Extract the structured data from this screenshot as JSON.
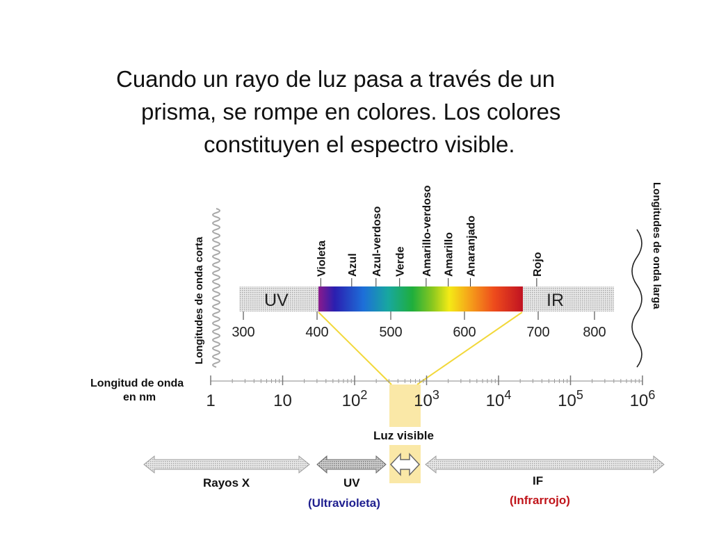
{
  "title_lines": [
    "Cuando un rayo de luz pasa a través de un",
    "prisma, se rompe en colores. Los colores",
    "constituyen el espectro visible."
  ],
  "side_labels": {
    "left": "Longitudes de onda corta",
    "right": "Longitudes de onda larga"
  },
  "spectrum": {
    "uv_label": "UV",
    "ir_label": "IR",
    "axis_ticks": [
      {
        "value": 300,
        "label": "300"
      },
      {
        "value": 400,
        "label": "400"
      },
      {
        "value": 500,
        "label": "500"
      },
      {
        "value": 600,
        "label": "600"
      },
      {
        "value": 700,
        "label": "700"
      },
      {
        "value": 800,
        "label": "800"
      }
    ],
    "visible_range": [
      400,
      700
    ],
    "colors": [
      {
        "name": "Violeta",
        "nm": 405
      },
      {
        "name": "Azul",
        "nm": 447
      },
      {
        "name": "Azul-verdoso",
        "nm": 480
      },
      {
        "name": "Verde",
        "nm": 512
      },
      {
        "name": "Amarillo-verdoso",
        "nm": 548
      },
      {
        "name": "Amarillo",
        "nm": 578
      },
      {
        "name": "Anaranjado",
        "nm": 608
      },
      {
        "name": "Rojo",
        "nm": 698
      }
    ]
  },
  "wavelength_scale": {
    "label_line1": "Longitud de onda",
    "label_line2": "en nm",
    "ticks": [
      {
        "base": "1",
        "exp": ""
      },
      {
        "base": "10",
        "exp": ""
      },
      {
        "base": "10",
        "exp": "2"
      },
      {
        "base": "10",
        "exp": "3"
      },
      {
        "base": "10",
        "exp": "4"
      },
      {
        "base": "10",
        "exp": "5"
      },
      {
        "base": "10",
        "exp": "6"
      }
    ]
  },
  "bands": {
    "visible_label": "Luz visible",
    "xray_label": "Rayos X",
    "uv_label": "UV",
    "uv_sublabel": "(Ultravioleta)",
    "if_label": "IF",
    "if_sublabel": "(Infrarrojo)"
  },
  "colors": {
    "uv_sublabel": "#1f1f8f",
    "if_sublabel": "#c0141a",
    "visible_highlight": "#f8e08a",
    "connector": "#f2d83a"
  }
}
